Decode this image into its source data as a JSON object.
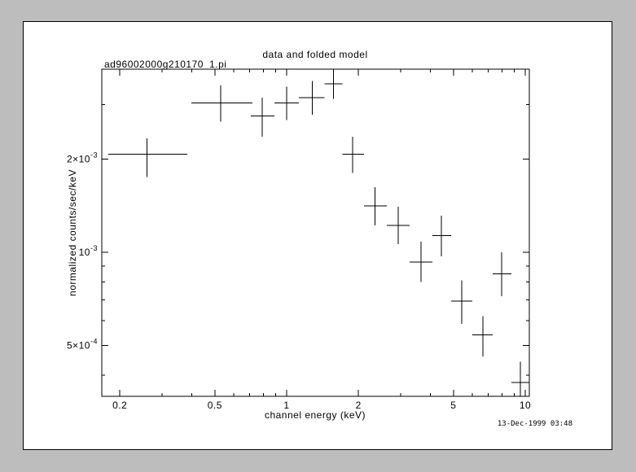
{
  "window": {
    "frame_background": "#bdbdbd",
    "canvas_background": "#ffffff",
    "plot_color": "#000000"
  },
  "footer": {
    "timestamp": "13-Dec-1999 03:48"
  },
  "chart_data": {
    "type": "scatter",
    "title": "data and folded model",
    "filename": "ad96002000g210170_1.pi",
    "xlabel": "channel energy (keV)",
    "ylabel": "normalized counts/sec/keV",
    "xscale": "log",
    "yscale": "log",
    "grid": false,
    "legend": "none",
    "marker_style": "cross-error-bars",
    "xlim": [
      0.168,
      10.4
    ],
    "ylim": [
      0.000342,
      0.0039
    ],
    "x_ticks": [
      {
        "value": 0.2,
        "label": "0.2"
      },
      {
        "value": 0.5,
        "label": "0.5"
      },
      {
        "value": 1,
        "label": "1"
      },
      {
        "value": 2,
        "label": "2"
      },
      {
        "value": 5,
        "label": "5"
      },
      {
        "value": 10,
        "label": "10"
      }
    ],
    "x_minor_ticks": [
      0.3,
      0.4,
      0.6,
      0.7,
      0.8,
      0.9,
      3,
      4,
      6,
      7,
      8,
      9
    ],
    "y_ticks": [
      {
        "value": 0.002,
        "mantissa": "2×10",
        "exponent": "-3",
        "label": "2x10^-3"
      },
      {
        "value": 0.001,
        "mantissa": "10",
        "exponent": "-3",
        "label": "10^-3"
      },
      {
        "value": 0.0005,
        "mantissa": "5×10",
        "exponent": "-4",
        "label": "5x10^-4"
      }
    ],
    "y_minor_ticks": [
      0.0004,
      0.0006,
      0.0007,
      0.0008,
      0.0009,
      0.003
    ],
    "points": [
      {
        "x": 0.26,
        "xlo": 0.179,
        "xhi": 0.384,
        "y": 0.00207,
        "ylo": 0.00175,
        "yhi": 0.00233
      },
      {
        "x": 0.53,
        "xlo": 0.399,
        "xhi": 0.719,
        "y": 0.00303,
        "ylo": 0.00264,
        "yhi": 0.00346
      },
      {
        "x": 0.79,
        "xlo": 0.708,
        "xhi": 0.889,
        "y": 0.00275,
        "ylo": 0.00236,
        "yhi": 0.00316
      },
      {
        "x": 1.0,
        "xlo": 0.889,
        "xhi": 1.125,
        "y": 0.00303,
        "ylo": 0.00267,
        "yhi": 0.00342
      },
      {
        "x": 1.28,
        "xlo": 1.125,
        "xhi": 1.44,
        "y": 0.00316,
        "ylo": 0.00278,
        "yhi": 0.00357
      },
      {
        "x": 1.57,
        "xlo": 1.44,
        "xhi": 1.71,
        "y": 0.0035,
        "ylo": 0.00313,
        "yhi": 0.0039
      },
      {
        "x": 1.89,
        "xlo": 1.71,
        "xhi": 2.11,
        "y": 0.00207,
        "ylo": 0.0018,
        "yhi": 0.00236
      },
      {
        "x": 2.35,
        "xlo": 2.11,
        "xhi": 2.63,
        "y": 0.00141,
        "ylo": 0.00122,
        "yhi": 0.00162
      },
      {
        "x": 2.93,
        "xlo": 2.63,
        "xhi": 3.27,
        "y": 0.00122,
        "ylo": 0.00106,
        "yhi": 0.0014
      },
      {
        "x": 3.66,
        "xlo": 3.27,
        "xhi": 4.08,
        "y": 0.00093,
        "ylo": 0.0008,
        "yhi": 0.00108
      },
      {
        "x": 4.45,
        "xlo": 4.08,
        "xhi": 4.89,
        "y": 0.00113,
        "ylo": 0.00097,
        "yhi": 0.00131
      },
      {
        "x": 5.42,
        "xlo": 4.89,
        "xhi": 6.0,
        "y": 0.000695,
        "ylo": 0.000586,
        "yhi": 0.00081
      },
      {
        "x": 6.64,
        "xlo": 6.0,
        "xhi": 7.3,
        "y": 0.00054,
        "ylo": 0.00046,
        "yhi": 0.00062
      },
      {
        "x": 7.96,
        "xlo": 7.3,
        "xhi": 8.75,
        "y": 0.00085,
        "ylo": 0.00072,
        "yhi": 0.001
      },
      {
        "x": 9.53,
        "xlo": 8.75,
        "xhi": 10.4,
        "y": 0.000379,
        "ylo": 0.000342,
        "yhi": 0.000442
      }
    ]
  }
}
